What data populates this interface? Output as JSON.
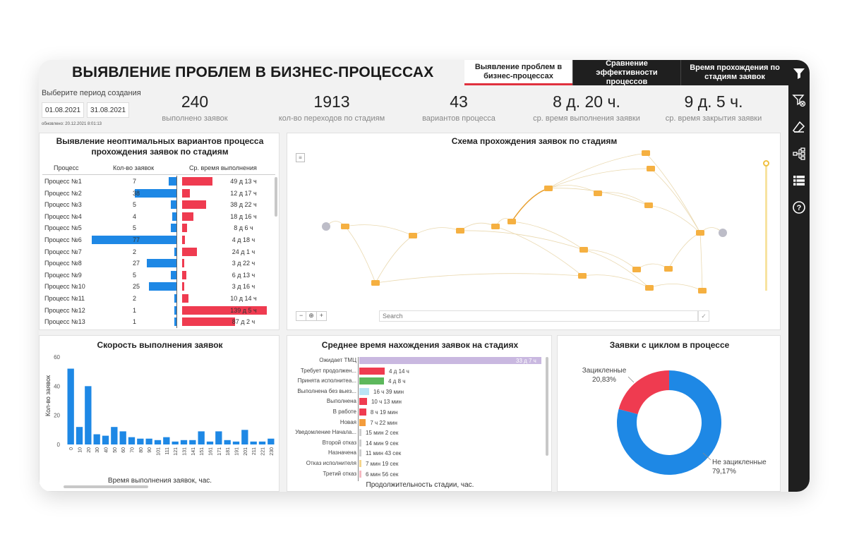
{
  "header": {
    "title": "ВЫЯВЛЕНИЕ ПРОБЛЕМ В БИЗНЕС-ПРОЦЕССАХ",
    "tabs": [
      {
        "label": "Выявление проблем в бизнес-процессах",
        "active": true
      },
      {
        "label": "Сравнение эффективности процессов",
        "active": false
      },
      {
        "label": "Время прохождения по стадиям заявок",
        "active": false
      }
    ]
  },
  "period": {
    "label": "Выберите период создания",
    "from": "01.08.2021",
    "to": "31.08.2021",
    "updated": "обновлено: 20.12.2021 8:01:13"
  },
  "kpis": [
    {
      "value": "240",
      "label": "выполнено заявок"
    },
    {
      "value": "1913",
      "label": "кол-во переходов по стадиям"
    },
    {
      "value": "43",
      "label": "вариантов процесса"
    },
    {
      "value": "8 д. 20 ч.",
      "label": "ср. время выполнения заявки"
    },
    {
      "value": "9 д. 5 ч.",
      "label": "ср. время закрытия заявки"
    }
  ],
  "process_table": {
    "title": "Выявление неоптимальных вариантов процесса прохождения заявок по стадиям",
    "col_process": "Процесс",
    "col_count": "Кол-во заявок",
    "col_time": "Ср. время выполнения",
    "rows": [
      {
        "name": "Процесс №1",
        "count": 7,
        "time": "49 д 13 ч",
        "days": 49.5
      },
      {
        "name": "Процесс №2",
        "count": 38,
        "time": "12 д 17 ч",
        "days": 12.7
      },
      {
        "name": "Процесс №3",
        "count": 5,
        "time": "38 д 22 ч",
        "days": 38.9
      },
      {
        "name": "Процесс №4",
        "count": 4,
        "time": "18 д 16 ч",
        "days": 18.7
      },
      {
        "name": "Процесс №5",
        "count": 5,
        "time": "8 д 6 ч",
        "days": 8.25
      },
      {
        "name": "Процесс №6",
        "count": 77,
        "time": "4 д 18 ч",
        "days": 4.75
      },
      {
        "name": "Процесс №7",
        "count": 2,
        "time": "24 д 1 ч",
        "days": 24.0
      },
      {
        "name": "Процесс №8",
        "count": 27,
        "time": "3 д 22 ч",
        "days": 3.9
      },
      {
        "name": "Процесс №9",
        "count": 5,
        "time": "6 д 13 ч",
        "days": 6.5
      },
      {
        "name": "Процесс №10",
        "count": 25,
        "time": "3 д 16 ч",
        "days": 3.7
      },
      {
        "name": "Процесс №11",
        "count": 2,
        "time": "10 д 14 ч",
        "days": 10.6
      },
      {
        "name": "Процесс №12",
        "count": 1,
        "time": "139 д 5 ч",
        "days": 139.2
      },
      {
        "name": "Процесс №13",
        "count": 1,
        "time": "87 д 2 ч",
        "days": 87.1
      }
    ]
  },
  "flow": {
    "title": "Схема прохождения заявок по стадиям",
    "search_placeholder": "Search"
  },
  "speed_chart": {
    "title": "Скорость выполнения заявок",
    "xlabel": "Время выполнения заявок, час.",
    "ylabel": "Кол-во заявок"
  },
  "stages_chart": {
    "title": "Среднее время нахождения заявок на стадиях",
    "xlabel": "Продолжительность стадии, час."
  },
  "cycle_chart": {
    "title": "Заявки с циклом в процессе"
  },
  "chart_data": [
    {
      "type": "bar",
      "title": "Скорость выполнения заявок",
      "xlabel": "Время выполнения заявок, час.",
      "ylabel": "Кол-во заявок",
      "ylim": [
        0,
        60
      ],
      "yticks": [
        0,
        20,
        40,
        60
      ],
      "categories": [
        "0",
        "10",
        "20",
        "30",
        "40",
        "50",
        "60",
        "70",
        "80",
        "90",
        "101",
        "111",
        "121",
        "131",
        "141",
        "151",
        "161",
        "171",
        "181",
        "191",
        "201",
        "211",
        "221",
        "230"
      ],
      "values": [
        52,
        12,
        40,
        7,
        6,
        12,
        9,
        5,
        4,
        4,
        3,
        5,
        2,
        3,
        3,
        9,
        2,
        9,
        3,
        2,
        10,
        2,
        2,
        4
      ]
    },
    {
      "type": "bar",
      "orientation": "horizontal",
      "title": "Среднее время нахождения заявок на стадиях",
      "xlabel": "Продолжительность стадии, час.",
      "categories": [
        "Ожидает ТМЦ",
        "Требует продолжен...",
        "Принята исполнитеа...",
        "Выполнена без выез...",
        "Выполнена",
        "В работе",
        "Новая",
        "Уведомление Начала...",
        "Второй отказ",
        "Назначена",
        "Отказ исполнителя",
        "Третий отказ"
      ],
      "labels": [
        "33 д 7 ч",
        "4 д 14 ч",
        "4 д 8 ч",
        "16 ч 39 мин",
        "10 ч 13 мин",
        "8 ч 19 мин",
        "7 ч 22 мин",
        "15 мин 2 сек",
        "14 мин 9 сек",
        "11 мин 43 сек",
        "7 мин 19 сек",
        "6 мин 56 сек"
      ],
      "values": [
        799,
        110,
        104,
        16.65,
        10.2,
        8.3,
        7.4,
        0.25,
        0.24,
        0.2,
        0.12,
        0.12
      ],
      "colors": [
        "#c9b8e0",
        "#ef3b50",
        "#5cb85c",
        "#b9e4f5",
        "#ef3b50",
        "#ef3b50",
        "#f39c3c",
        "#cccccc",
        "#cccccc",
        "#cccccc",
        "#f5d58a",
        "#f5b8c0"
      ]
    },
    {
      "type": "pie",
      "title": "Заявки с циклом в процессе",
      "slices": [
        {
          "label": "Зацикленные",
          "pct": "20,83%",
          "value": 20.83,
          "color": "#ef3b50"
        },
        {
          "label": "Не зацикленные",
          "pct": "79,17%",
          "value": 79.17,
          "color": "#1e88e5"
        }
      ]
    }
  ]
}
